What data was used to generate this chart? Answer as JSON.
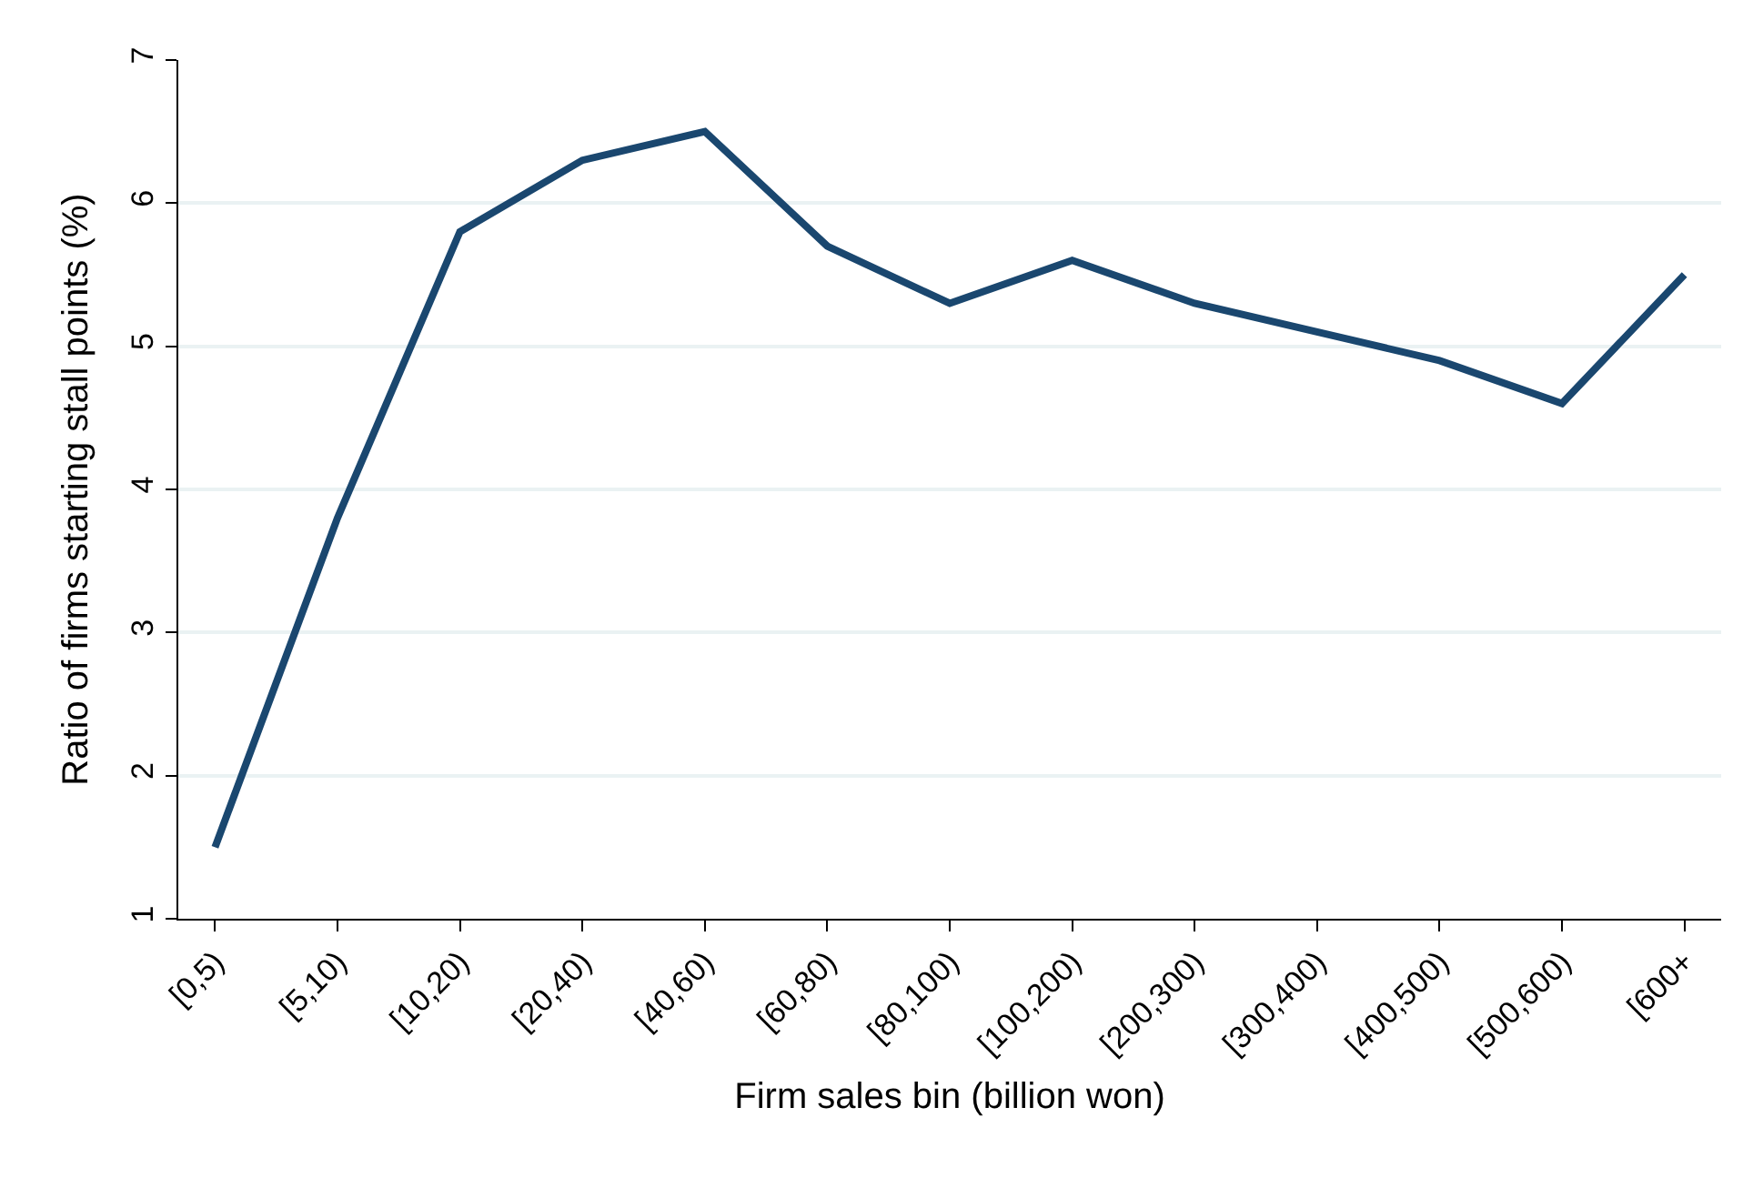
{
  "chart_data": {
    "type": "line",
    "xlabel": "Firm sales bin (billion won)",
    "ylabel": "Ratio of firms starting stall points (%)",
    "categories": [
      "[0,5)",
      "[5,10)",
      "[10,20)",
      "[20,40)",
      "[40,60)",
      "[60,80)",
      "[80,100)",
      "[100,200)",
      "[200,300)",
      "[300,400)",
      "[400,500)",
      "[500,600)",
      "[600+"
    ],
    "series": [
      {
        "color": "#1a476f",
        "values": [
          1.5,
          3.8,
          5.8,
          6.3,
          6.5,
          5.7,
          5.3,
          5.6,
          5.3,
          5.1,
          4.9,
          4.6,
          5.5
        ]
      }
    ],
    "ylim": [
      1,
      7
    ],
    "yticks": [
      1,
      2,
      3,
      4,
      5,
      6,
      7
    ],
    "grid": "y",
    "marker": "none",
    "line_style": "solid"
  }
}
